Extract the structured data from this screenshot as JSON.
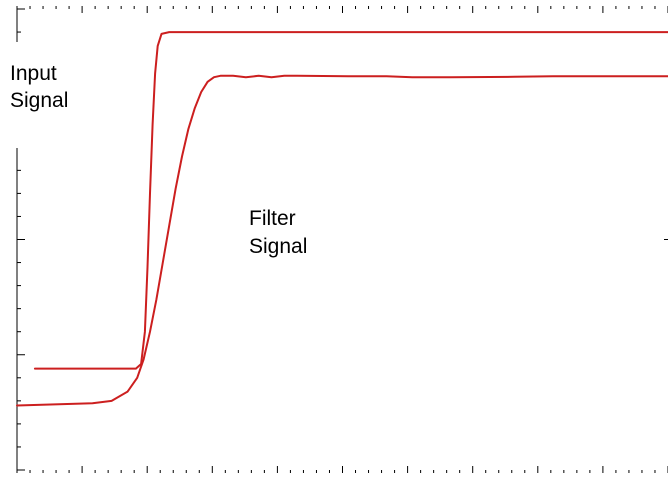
{
  "chart_data": {
    "type": "line",
    "title": "",
    "xlabel": "",
    "ylabel": "",
    "grid": false,
    "axis_color": "#000000",
    "series": [
      {
        "name": "Input Signal",
        "color": "#cc1f1f",
        "x": [
          0.1,
          1.0,
          1.68,
          1.76,
          1.82,
          1.86,
          1.9,
          1.94,
          1.98,
          2.02,
          2.08,
          2.2,
          2.6,
          4.0,
          6.0,
          8.0,
          10.0
        ],
        "y": [
          2.2,
          2.2,
          2.2,
          2.3,
          3.0,
          4.4,
          6.0,
          7.5,
          8.6,
          9.2,
          9.46,
          9.5,
          9.5,
          9.5,
          9.5,
          9.5,
          9.5
        ]
      },
      {
        "name": "Filter Signal",
        "color": "#cc1f1f",
        "x": [
          -0.18,
          1.0,
          1.3,
          1.55,
          1.7,
          1.8,
          1.9,
          2.0,
          2.1,
          2.2,
          2.3,
          2.4,
          2.5,
          2.6,
          2.7,
          2.8,
          2.9,
          3.0,
          3.2,
          3.4,
          3.6,
          3.8,
          4.0,
          4.2,
          5.0,
          5.6,
          6.0,
          6.6,
          7.6,
          8.2,
          9.0,
          10.0
        ],
        "y": [
          1.4,
          1.45,
          1.5,
          1.7,
          2.0,
          2.4,
          3.0,
          3.7,
          4.5,
          5.3,
          6.1,
          6.8,
          7.4,
          7.85,
          8.2,
          8.42,
          8.52,
          8.55,
          8.55,
          8.52,
          8.55,
          8.52,
          8.55,
          8.55,
          8.54,
          8.54,
          8.52,
          8.52,
          8.53,
          8.54,
          8.54,
          8.54
        ]
      }
    ],
    "xlim": [
      -0.18,
      10
    ],
    "ylim": [
      0,
      10
    ]
  },
  "annotations": {
    "input_line1": "Input",
    "input_line2": "Signal",
    "filter_line1": "Filter",
    "filter_line2": "Signal"
  }
}
